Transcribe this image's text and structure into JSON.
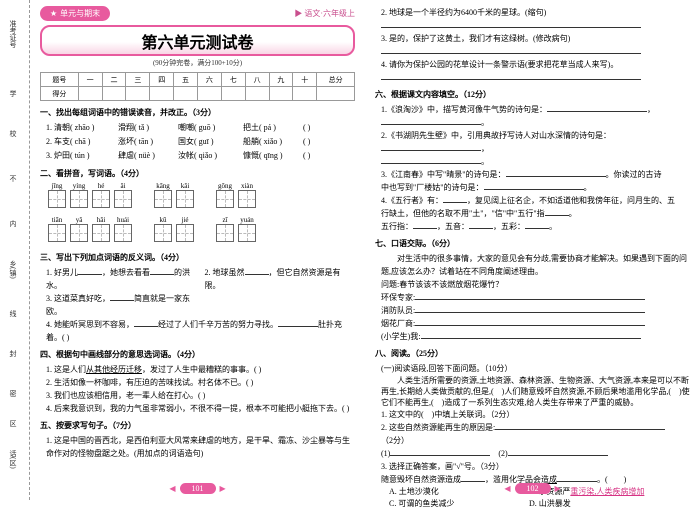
{
  "leftMarginLabels": [
    "准考证号",
    "学",
    "校",
    "不",
    "内",
    "乡(镇)",
    "线",
    "封",
    "密",
    "区",
    "话(区)"
  ],
  "header": {
    "badge": "单元与期末",
    "subject": "▶ 语文·六年级上"
  },
  "title": "第六单元测试卷",
  "subtitle": "(90分钟完卷，满分100+10分)",
  "scoreTable": {
    "rowHead1": "题号",
    "cols": [
      "一",
      "二",
      "三",
      "四",
      "五",
      "六",
      "七",
      "八",
      "九",
      "十",
      "总分"
    ],
    "rowHead2": "得分"
  },
  "q1": {
    "head": "一、找出每组词语中的错误读音，并改正。（3分）",
    "r1": [
      "1. 清朝( zhāo )",
      "滑翔( tǎ )",
      "嘲嘲( guō )",
      "把土( pá )",
      "(        )"
    ],
    "r2": [
      "2. 车支( chā )",
      "涨坏( tān )",
      "国女( guī )",
      "船艄( xiǎo )",
      "(        )"
    ],
    "r3": [
      "3. 炉田( tún )",
      "肆虐( nüè )",
      "汝帐( qiǎo )",
      "慷慨( qīng )",
      "(        )"
    ]
  },
  "q2": {
    "head": "二、看拼音，写词语。（4分）",
    "row1": [
      "jīng",
      "yíng",
      "hé",
      "ǎi",
      "",
      "kāng",
      "kǎi",
      "",
      "gōng",
      "xiàn"
    ],
    "row2": [
      "tiān",
      "yǎ",
      "hǎi",
      "huái",
      "",
      "kū",
      "jié",
      "",
      "zī",
      "yuán"
    ]
  },
  "q3": {
    "head": "三、写出下列加点词语的反义词。（4分）",
    "rows": [
      "1. 好男儿<span class='blank-s'></span>，她想去看看<span class='blank-s'></span>的洪水。",
      "2. 地球虽然<span class='blank-s'></span>，但它自然资源是有限。",
      "3. 这道菜真好吃，<span class='blank-s'></span>简直就是一家东欧。",
      "4. 她能听冥思到不容易，<span class='blank-s'></span>经过了人们千辛万苦的努力寻找。<span class='blank'></span>肚扑充着。(      )"
    ]
  },
  "q4": {
    "head": "四、根据句中画线部分的意思选词语。（4分）",
    "rows": [
      "1. 这是人们<u>从其他经历迁移</u>，发过了人生中最糟糕的事事。(        )",
      "2. 生活如像一杯咖啡，有压迫的苦味找试。村名体不已。(        )",
      "3. 我们也应该相信用，老一辈人给在打心。(        )",
      "4. 后来我意识到，我的力气虽非常弱小，不很不得一提，根本不可能把小艇拖下去。(        )"
    ]
  },
  "q5": {
    "head": "五、按要求写句子。（7分）",
    "row": "1. 这是中国的晋西北，是西伯利亚大风常来肆虐的地方，是干旱、霜冻、沙尘暴等与生命作对的怪物盘踞之处。(用加点的词语造句)"
  },
  "right": {
    "r2": "2. 地球是一个半径约为6400千米的星球。(缩句)",
    "r3": "3. 是的，保护了这黄土，我们才有这绿树。(修改病句)",
    "r4": "4. 请你为保护公园的花草设计一条警示语(要求把花草当成人来写)。",
    "q6": {
      "head": "六、根据课文内容填空。（12分）",
      "rows": [
        "1.《浪淘沙》中，描写黄河像牛气势的诗句是：<span class='blank-l'></span>，<span class='blank-l'></span>。",
        "2.《书湖阴先生壁》中，引用典故抒写诗人对山水深情的诗句是：<span class='blank-l'></span>，",
        "<span class='blank-l'></span>。",
        "3.《江南春》中写\"晴景\"的诗句是：<span class='blank-l'></span>。你读过的古诗",
        "中也写到\"厂楼姑\"的诗句是：<span class='blank-l'></span>。",
        "4.《五行者》有：<span class='blank-s'></span>，复见阔上征名企，不如适道他和我傍年征，问月生的、五",
        "行缺土，但他的名取不用\"土\"，\"信\"中\"五行\"指<span class='blank-s'></span>。",
        "五行指：<span class='blank-s'></span>，五音：<span class='blank-s'></span>，五彩：<span class='blank-s'></span>。"
      ]
    },
    "q7": {
      "head": "七、口语交际。（6分）",
      "body": "　　对生活中的很多事情，大家的意见会有分歧,需要协商才能解决。如果遇到下面的问题,应该怎么办？试着站在不同角度阐述理由。",
      "topic": "问题:春节该该不该燃放烟花爆竹？",
      "lines": [
        "环保专家:",
        "消防队员:",
        "烟花厂商:",
        "(小学生)我:"
      ]
    },
    "q8": {
      "head": "八、阅读。（25分）",
      "sa": "(一)阅读语段,回答下面问题。（10分）",
      "sa_text": "　　人类生活所需要的资源,土地资源、森林资源、生物资源、大气资源,本来是可以不断再生,长期给人类做贡献的,但是,(　)人们随意毁坏自然资源,不顾后果地滥用化学品,(　)使它们不能再生,(　)造成了一系列生态灾难,给人类生存带来了严重的威胁。",
      "s1": "1. 这文中的(　)中填上关联词。（2分）",
      "s2": "2. 这些自然资源能再生的原因是:",
      "s3": "3. 选择正确答案，画\"√\"号。（3分）",
      "s3q": "随意毁坏自然资源造成<span class='blank-s'></span>，滥用化学品会<u>造成</u><span class='blank'></span>。(　　)",
      "opts": [
        "A. 土地沙漠化",
        "B. 水资源严<u class='hl'>重污染,人类疾病增加</u>",
        "C. 可谓的鱼类减少",
        "D. 山洪暴发"
      ]
    }
  },
  "footer": {
    "p1": "101",
    "p2": "102"
  }
}
